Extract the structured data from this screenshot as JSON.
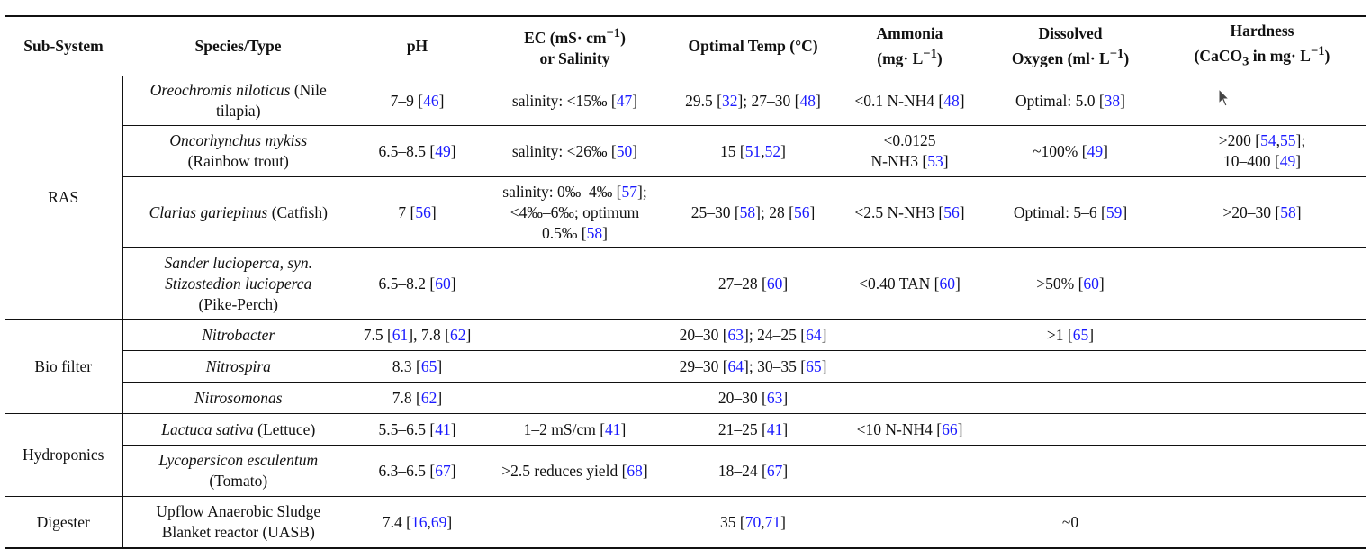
{
  "headers": {
    "subsystem": "Sub-System",
    "species": "Species/Type",
    "ph": "pH",
    "ec_l1": "EC (mS· cm",
    "ec_sup": "−1",
    "ec_l1b": ")",
    "ec_l2": "or Salinity",
    "temp": "Optimal Temp (°C)",
    "ammonia_l1": "Ammonia",
    "ammonia_l2a": "(mg· L",
    "ammonia_sup": "−1",
    "ammonia_l2b": ")",
    "do_l1": "Dissolved",
    "do_l2a": "Oxygen (ml· L",
    "do_sup": "−1",
    "do_l2b": ")",
    "hard_l1": "Hardness",
    "hard_l2a": "(CaCO",
    "hard_sub": "3",
    "hard_l2b": " in mg· L",
    "hard_sup": "−1",
    "hard_l2c": ")"
  },
  "groups": {
    "ras": "RAS",
    "bio": "Bio filter",
    "hyd": "Hydroponics",
    "dig": "Digester"
  },
  "rows": {
    "tilapia": {
      "sp_a": "Oreochromis niloticus",
      "sp_b": " (Nile",
      "sp_c": "tilapia)",
      "ph_a": "7–9 [",
      "ph_r1": "46",
      "ph_b": "]",
      "ec_a": "salinity: <15‰ [",
      "ec_r1": "47",
      "ec_b": "]",
      "t_a": "29.5 [",
      "t_r1": "32",
      "t_b": "]; 27–30 [",
      "t_r2": "48",
      "t_c": "]",
      "am_a": "<0.1 N-NH4 [",
      "am_r1": "48",
      "am_b": "]",
      "do_a": "Optimal: 5.0 [",
      "do_r1": "38",
      "do_b": "]"
    },
    "trout": {
      "sp_a": "Oncorhynchus mykiss",
      "sp_b": "(Rainbow trout)",
      "ph_a": "6.5–8.5 [",
      "ph_r1": "49",
      "ph_b": "]",
      "ec_a": "salinity: <26‰ [",
      "ec_r1": "50",
      "ec_b": "]",
      "t_a": "15 [",
      "t_r1": "51",
      "t_s": ",",
      "t_r2": "52",
      "t_b": "]",
      "am_a": "<0.0125",
      "am_b": "N-NH3 [",
      "am_r1": "53",
      "am_c": "]",
      "do_a": "~100% [",
      "do_r1": "49",
      "do_b": "]",
      "h_a": ">200 [",
      "h_r1": "54",
      "h_s": ",",
      "h_r2": "55",
      "h_b": "];",
      "h_c": "10–400 [",
      "h_r3": "49",
      "h_d": "]"
    },
    "catfish": {
      "sp_a": "Clarias gariepinus",
      "sp_b": " (Catfish)",
      "ph_a": "7 [",
      "ph_r1": "56",
      "ph_b": "]",
      "ec_a": "salinity: 0‰–4‰ [",
      "ec_r1": "57",
      "ec_b": "];",
      "ec_c": "<4‰–6‰; optimum",
      "ec_d": "0.5‰ [",
      "ec_r2": "58",
      "ec_e": "]",
      "t_a": "25–30 [",
      "t_r1": "58",
      "t_b": "]; 28 [",
      "t_r2": "56",
      "t_c": "]",
      "am_a": "<2.5 N-NH3 [",
      "am_r1": "56",
      "am_b": "]",
      "do_a": "Optimal: 5–6 [",
      "do_r1": "59",
      "do_b": "]",
      "h_a": ">20–30 [",
      "h_r1": "58",
      "h_b": "]"
    },
    "perch": {
      "sp_a": "Sander lucioperca, syn.",
      "sp_b": "Stizostedion lucioperca",
      "sp_c": "(Pike-Perch)",
      "ph_a": "6.5–8.2 [",
      "ph_r1": "60",
      "ph_b": "]",
      "t_a": "27–28 [",
      "t_r1": "60",
      "t_b": "]",
      "am_a": "<0.40 TAN [",
      "am_r1": "60",
      "am_b": "]",
      "do_a": ">50% [",
      "do_r1": "60",
      "do_b": "]"
    },
    "nitrobacter": {
      "sp_a": "Nitrobacter",
      "ph_a": "7.5 [",
      "ph_r1": "61",
      "ph_b": "], 7.8 [",
      "ph_r2": "62",
      "ph_c": "]",
      "t_a": "20–30 [",
      "t_r1": "63",
      "t_b": "]; 24–25 [",
      "t_r2": "64",
      "t_c": "]",
      "do_a": ">1 [",
      "do_r1": "65",
      "do_b": "]"
    },
    "nitrospira": {
      "sp_a": "Nitrospira",
      "ph_a": "8.3 [",
      "ph_r1": "65",
      "ph_b": "]",
      "t_a": "29–30 [",
      "t_r1": "64",
      "t_b": "]; 30–35 [",
      "t_r2": "65",
      "t_c": "]"
    },
    "nitrosomonas": {
      "sp_a": "Nitrosomonas",
      "ph_a": "7.8 [",
      "ph_r1": "62",
      "ph_b": "]",
      "t_a": "20–30 [",
      "t_r1": "63",
      "t_b": "]"
    },
    "lettuce": {
      "sp_a": "Lactuca sativa",
      "sp_b": " (Lettuce)",
      "ph_a": "5.5–6.5 [",
      "ph_r1": "41",
      "ph_b": "]",
      "ec_a": "1–2 mS/cm [",
      "ec_r1": "41",
      "ec_b": "]",
      "t_a": "21–25 [",
      "t_r1": "41",
      "t_b": "]",
      "am_a": "<10 N-NH4 [",
      "am_r1": "66",
      "am_b": "]"
    },
    "tomato": {
      "sp_a": "Lycopersicon esculentum",
      "sp_b": "(Tomato)",
      "ph_a": "6.3–6.5 [",
      "ph_r1": "67",
      "ph_b": "]",
      "ec_a": ">2.5 reduces yield [",
      "ec_r1": "68",
      "ec_b": "]",
      "t_a": "18–24 [",
      "t_r1": "67",
      "t_b": "]"
    },
    "uasb": {
      "sp_a": "Upflow Anaerobic Sludge",
      "sp_b": "Blanket reactor (UASB)",
      "ph_a": "7.4 [",
      "ph_r1": "16",
      "ph_s": ",",
      "ph_r2": "69",
      "ph_b": "]",
      "t_a": "35 [",
      "t_r1": "70",
      "t_s": ",",
      "t_r2": "71",
      "t_b": "]",
      "do_a": "~0"
    }
  },
  "colors": {
    "citation": "#1a1aff",
    "text": "#111111",
    "rule": "#111111"
  },
  "icons": {
    "cursor": "mouse-pointer-icon"
  }
}
